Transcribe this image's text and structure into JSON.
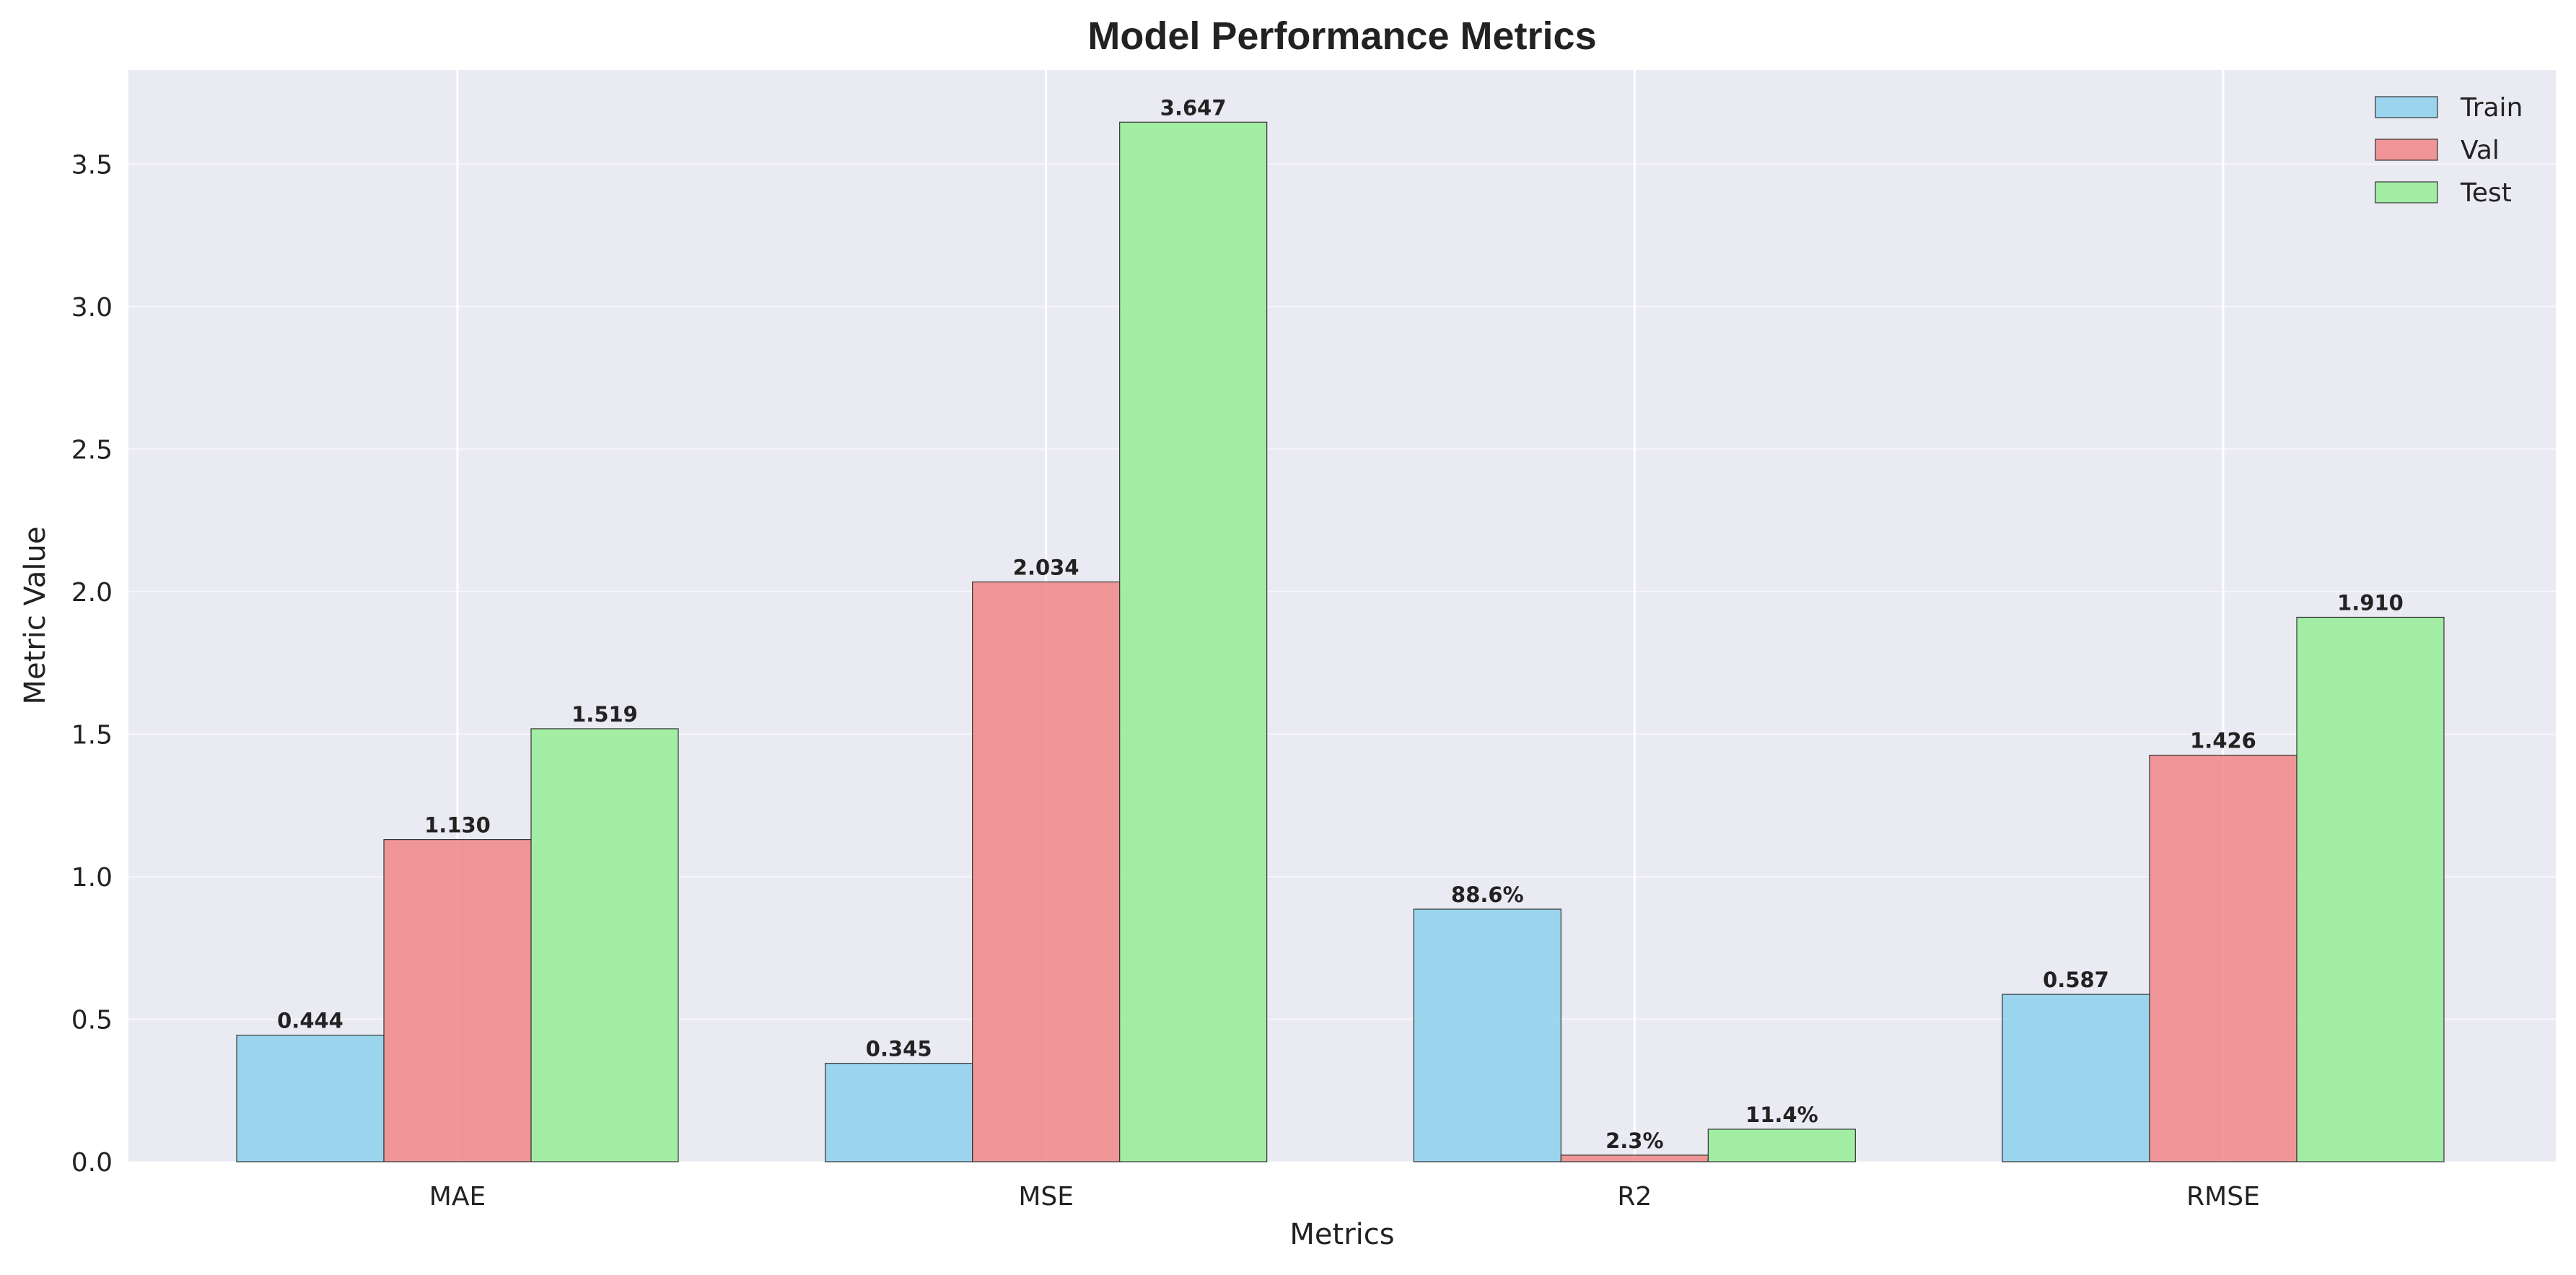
{
  "chart_data": {
    "type": "bar",
    "title": "Model Performance Metrics",
    "xlabel": "Metrics",
    "ylabel": "Metric Value",
    "categories": [
      "MAE",
      "MSE",
      "R2",
      "RMSE"
    ],
    "series": [
      {
        "name": "Train",
        "color": "#87CEEB",
        "values": [
          0.444,
          0.345,
          0.886,
          0.587
        ],
        "labels": [
          "0.444",
          "0.345",
          "88.6%",
          "0.587"
        ]
      },
      {
        "name": "Val",
        "color": "#F08080",
        "values": [
          1.13,
          2.034,
          0.023,
          1.426
        ],
        "labels": [
          "1.130",
          "2.034",
          "2.3%",
          "1.426"
        ]
      },
      {
        "name": "Test",
        "color": "#90EE90",
        "values": [
          1.519,
          3.647,
          0.114,
          1.91
        ],
        "labels": [
          "1.519",
          "3.647",
          "11.4%",
          "1.910"
        ]
      }
    ],
    "ylim": [
      0,
      3.83
    ],
    "yticks": [
      "0.0",
      "0.5",
      "1.0",
      "1.5",
      "2.0",
      "2.5",
      "3.0",
      "3.5"
    ],
    "grid": true,
    "legend_position": "top-right",
    "background_color": "#EAEAF2"
  }
}
